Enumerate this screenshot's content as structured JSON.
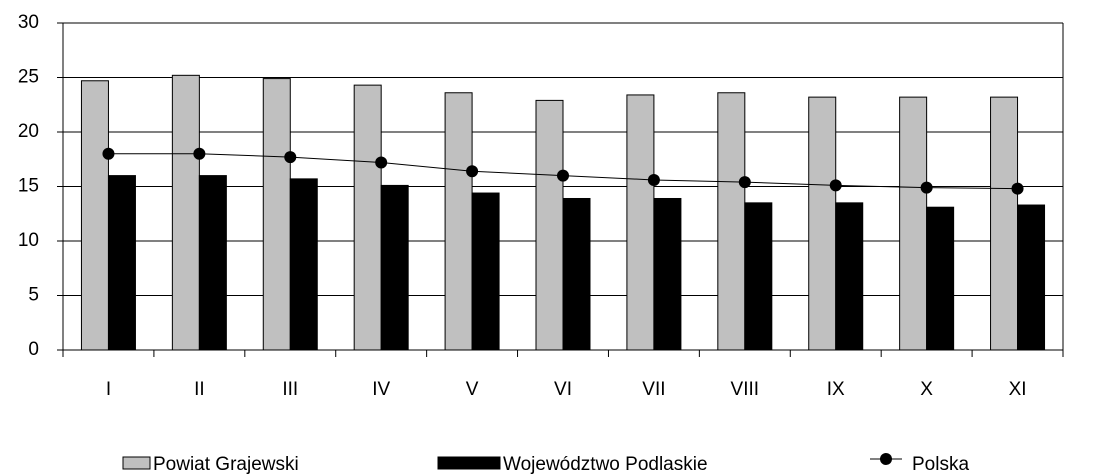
{
  "chart_data": {
    "type": "bar-line",
    "categories": [
      "I",
      "II",
      "III",
      "IV",
      "V",
      "VI",
      "VII",
      "VIII",
      "IX",
      "X",
      "XI"
    ],
    "series": [
      {
        "name": "Powiat Grajewski",
        "color": "#c0c0c0",
        "kind": "bar",
        "values": [
          24.7,
          25.2,
          24.9,
          24.3,
          23.6,
          22.9,
          23.4,
          23.6,
          23.2,
          23.2,
          23.2
        ]
      },
      {
        "name": "Województwo Podlaskie",
        "color": "#000000",
        "kind": "bar",
        "values": [
          16.0,
          16.0,
          15.7,
          15.1,
          14.4,
          13.9,
          13.9,
          13.5,
          13.5,
          13.1,
          13.3
        ]
      },
      {
        "name": "Polska",
        "color": "#000000",
        "kind": "line",
        "values": [
          18.0,
          18.0,
          17.7,
          17.2,
          16.4,
          16.0,
          15.6,
          15.4,
          15.1,
          14.9,
          14.8
        ]
      }
    ],
    "ylim": [
      0,
      30
    ],
    "yticks": [
      0,
      5,
      10,
      15,
      20,
      25,
      30
    ],
    "grid": true,
    "legend": "bottom"
  }
}
